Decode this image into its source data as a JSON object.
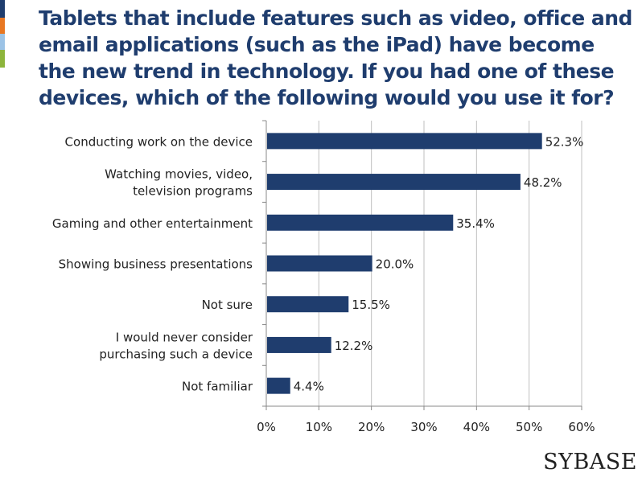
{
  "header": {
    "title": "Tablets that include features such as video, office and email applications (such as the iPad) have become the new trend in technology. If you had one of these devices, which of the following would you use it for?"
  },
  "brand": {
    "logo_text": "SYBASE",
    "accent_colors": [
      "#1f3d6e",
      "#e87722",
      "#9cc3e6",
      "#8db53c"
    ]
  },
  "chart_data": {
    "type": "bar",
    "orientation": "horizontal",
    "categories": [
      [
        "Conducting work on the device"
      ],
      [
        "Watching movies, video,",
        "television programs"
      ],
      [
        "Gaming and other entertainment"
      ],
      [
        "Showing business presentations"
      ],
      [
        "Not sure"
      ],
      [
        "I would never consider",
        "purchasing such a device"
      ],
      [
        "Not familiar"
      ]
    ],
    "values": [
      52.3,
      48.2,
      35.4,
      20.0,
      15.5,
      12.2,
      4.4
    ],
    "value_labels": [
      "52.3%",
      "48.2%",
      "35.4%",
      "20.0%",
      "15.5%",
      "12.2%",
      "4.4%"
    ],
    "xlim": [
      0,
      60
    ],
    "ticks": [
      0,
      10,
      20,
      30,
      40,
      50,
      60
    ],
    "tick_labels": [
      "0%",
      "10%",
      "20%",
      "30%",
      "40%",
      "50%",
      "60%"
    ],
    "grid": true,
    "bar_color": "#1f3d6e",
    "grid_color": "#bfbfbf"
  }
}
